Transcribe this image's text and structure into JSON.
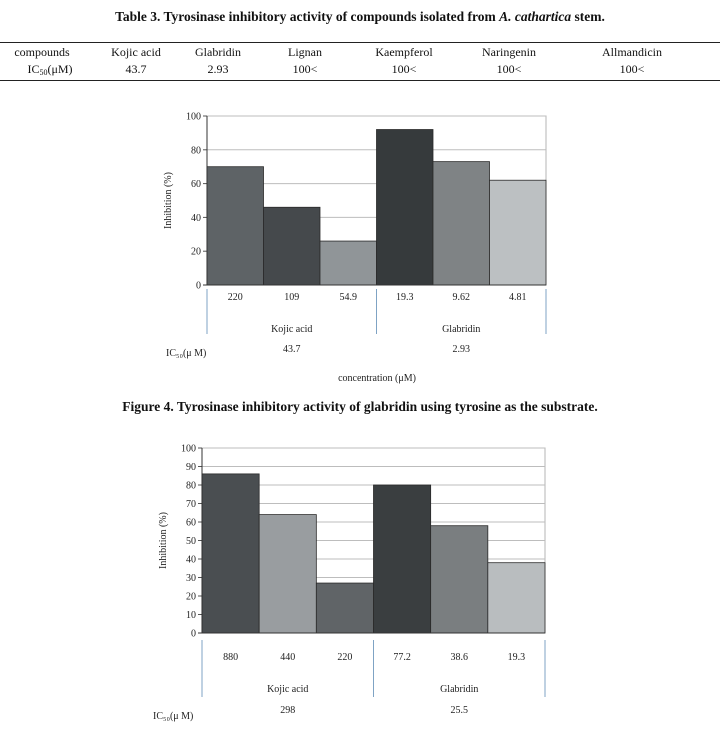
{
  "table": {
    "title_prefix": "Table 3. Tyrosinase inhibitory activity of compounds isolated from ",
    "title_species": "A. cathartica",
    "title_suffix": " stem.",
    "header_label": "compounds",
    "row_label_base": "IC",
    "row_label_sub": "50",
    "row_label_unit": "(μM)",
    "columns": [
      {
        "name": "Kojic acid",
        "value": "43.7"
      },
      {
        "name": "Glabridin",
        "value": "2.93"
      },
      {
        "name": "Lignan",
        "value": "100<"
      },
      {
        "name": "Kaempferol",
        "value": "100<"
      },
      {
        "name": "Naringenin",
        "value": "100<"
      },
      {
        "name": "Allmandicin",
        "value": "100<"
      }
    ]
  },
  "figure4_caption": "Figure 4. Tyrosinase inhibitory activity of glabridin using tyrosine as the substrate.",
  "chart_data": [
    {
      "type": "bar",
      "ylabel": "Inhibition (%)",
      "xlabel": "concentration (μM)",
      "ylim": [
        0,
        100
      ],
      "yticks": [
        0,
        20,
        40,
        60,
        80,
        100
      ],
      "grid": true,
      "categories": [
        "220",
        "109",
        "54.9",
        "19.3",
        "9.62",
        "4.81"
      ],
      "values": [
        70,
        46,
        26,
        92,
        73,
        62
      ],
      "bar_colors": [
        "#5e6366",
        "#45494c",
        "#909598",
        "#363a3c",
        "#7f8385",
        "#bcc0c2"
      ],
      "groups": [
        {
          "name": "Kojic acid",
          "ic50": "43.7",
          "count": 3
        },
        {
          "name": "Glabridin",
          "ic50": "2.93",
          "count": 3
        }
      ],
      "ic50_label": "IC₅₀(μ M)"
    },
    {
      "type": "bar",
      "ylabel": "Inhibition (%)",
      "xlabel": "",
      "ylim": [
        0,
        100
      ],
      "yticks": [
        0,
        10,
        20,
        30,
        40,
        50,
        60,
        70,
        80,
        90,
        100
      ],
      "grid": true,
      "categories": [
        "880",
        "440",
        "220",
        "77.2",
        "38.6",
        "19.3"
      ],
      "values": [
        86,
        64,
        27,
        80,
        58,
        38
      ],
      "bar_colors": [
        "#4a4e51",
        "#999da0",
        "#606467",
        "#3a3e40",
        "#7a7e80",
        "#b9bdbf"
      ],
      "groups": [
        {
          "name": "Kojic acid",
          "ic50": "298",
          "count": 3
        },
        {
          "name": "Glabridin",
          "ic50": "25.5",
          "count": 3
        }
      ],
      "ic50_label": "IC₅₀(μ M)"
    }
  ]
}
